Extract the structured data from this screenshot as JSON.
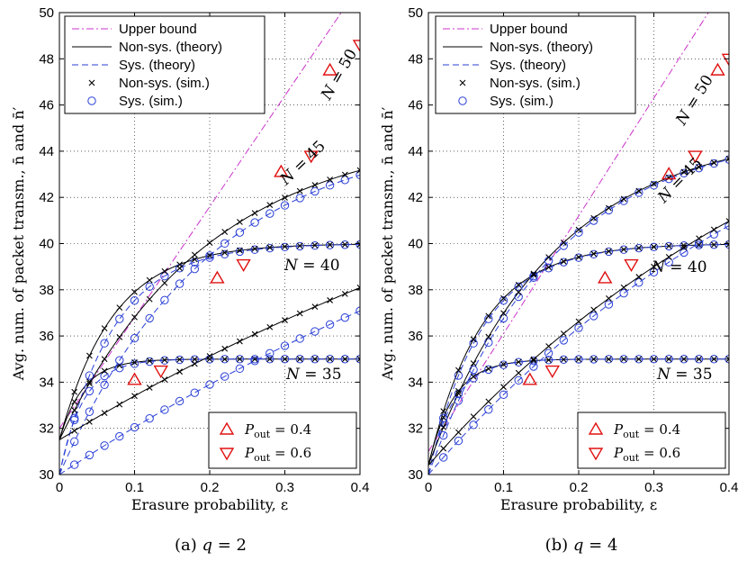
{
  "colors": {
    "upper_bound": "#cc33cc",
    "theory_nonsys": "#000000",
    "theory_sys": "#2a3fd6",
    "sim_nonsys": "#000000",
    "sim_sys": "#2a3fd6",
    "pout_markers": "#e01010",
    "grid": "#000000"
  },
  "legend_main": [
    {
      "key": "upper",
      "label": "Upper bound"
    },
    {
      "key": "nonsys_theory",
      "label": "Non-sys. (theory)"
    },
    {
      "key": "sys_theory",
      "label": "Sys. (theory)"
    },
    {
      "key": "nonsys_sim",
      "label": "Non-sys. (sim.)"
    },
    {
      "key": "sys_sim",
      "label": "Sys. (sim.)"
    }
  ],
  "legend_pout": [
    {
      "key": "pout04",
      "label": "P_out = 0.4",
      "symbol": "P",
      "subscript": "out",
      "value": "= 0.4"
    },
    {
      "key": "pout06",
      "label": "P_out = 0.6",
      "symbol": "P",
      "subscript": "out",
      "value": "= 0.6"
    }
  ],
  "chart_data": [
    {
      "type": "line",
      "caption": "(a) q = 2",
      "caption_prefix": "(a)",
      "caption_var": "q",
      "caption_value": "= 2",
      "xlabel": "Erasure probability, ε",
      "ylabel": "Avg. num. of packet transm., n̄ and n̄′",
      "xlim": [
        0,
        0.4
      ],
      "ylim": [
        30,
        50
      ],
      "xticks": [
        "0",
        "0.1",
        "0.2",
        "0.3",
        "0.4"
      ],
      "yticks": [
        "30",
        "32",
        "34",
        "36",
        "38",
        "40",
        "42",
        "44",
        "46",
        "48",
        "50"
      ],
      "grid": true,
      "upper_bound": {
        "x0": 0,
        "y0": 32.0,
        "slope": 48.0
      },
      "theory_nonsys_intercept": 31.5,
      "theory_sys_intercept": 30.0,
      "sim_x": [
        0.02,
        0.04,
        0.06,
        0.08,
        0.1,
        0.12,
        0.14,
        0.16,
        0.18,
        0.2,
        0.22,
        0.24,
        0.26,
        0.28,
        0.3,
        0.32,
        0.34,
        0.36,
        0.38,
        0.4
      ],
      "curves": [
        {
          "N": 35,
          "label": "N = 35",
          "label_N": "N",
          "label_value": "= 35",
          "sat": 35.0,
          "k": 32.0
        },
        {
          "N": 40,
          "label": "N = 40",
          "label_N": "N",
          "label_value": "= 40",
          "sat": 40.0,
          "k": 14.0
        },
        {
          "N": 45,
          "label": "N = 45",
          "label_N": "N",
          "label_value": "= 45",
          "sat": 45.0,
          "k": 5.0
        },
        {
          "N": 50,
          "label": "N = 50",
          "label_N": "N",
          "label_value": "= 50",
          "sat": 51.5,
          "k": 1.0
        }
      ],
      "pout_04": [
        {
          "x": 0.1,
          "y": 34.1
        },
        {
          "x": 0.21,
          "y": 38.5
        },
        {
          "x": 0.295,
          "y": 43.1
        },
        {
          "x": 0.36,
          "y": 47.5
        }
      ],
      "pout_06": [
        {
          "x": 0.135,
          "y": 34.5
        },
        {
          "x": 0.245,
          "y": 39.1
        },
        {
          "x": 0.335,
          "y": 43.8
        },
        {
          "x": 0.4,
          "y": 48.6
        }
      ]
    },
    {
      "type": "line",
      "caption": "(b) q = 4",
      "caption_prefix": "(b)",
      "caption_var": "q",
      "caption_value": "= 4",
      "xlabel": "Erasure probability, ε",
      "ylabel": "Avg. num. of packet transm., n̄ and n̄′",
      "xlim": [
        0,
        0.4
      ],
      "ylim": [
        30,
        50
      ],
      "xticks": [
        "0",
        "0.1",
        "0.2",
        "0.3",
        "0.4"
      ],
      "yticks": [
        "30",
        "32",
        "34",
        "36",
        "38",
        "40",
        "42",
        "44",
        "46",
        "48",
        "50"
      ],
      "grid": true,
      "upper_bound": {
        "x0": 0,
        "y0": 31.0,
        "slope": 51.0
      },
      "theory_nonsys_intercept": 30.4,
      "theory_sys_intercept": 30.0,
      "sim_x": [
        0.02,
        0.04,
        0.06,
        0.08,
        0.1,
        0.12,
        0.14,
        0.16,
        0.18,
        0.2,
        0.22,
        0.24,
        0.26,
        0.28,
        0.3,
        0.32,
        0.34,
        0.36,
        0.38,
        0.4
      ],
      "curves": [
        {
          "N": 35,
          "label": "N = 35",
          "label_N": "N",
          "label_value": "= 35",
          "sat": 35.0,
          "k": 30.0
        },
        {
          "N": 40,
          "label": "N = 40",
          "label_N": "N",
          "label_value": "= 40",
          "sat": 40.0,
          "k": 14.0
        },
        {
          "N": 45,
          "label": "N = 45",
          "label_N": "N",
          "label_value": "= 45",
          "sat": 45.0,
          "k": 6.0
        },
        {
          "N": 50,
          "label": "N = 50",
          "label_N": "N",
          "label_value": "= 50",
          "sat": 51.0,
          "k": 1.8
        }
      ],
      "pout_04": [
        {
          "x": 0.135,
          "y": 34.1
        },
        {
          "x": 0.235,
          "y": 38.5
        },
        {
          "x": 0.32,
          "y": 43.0
        },
        {
          "x": 0.385,
          "y": 47.5
        }
      ],
      "pout_06": [
        {
          "x": 0.165,
          "y": 34.5
        },
        {
          "x": 0.27,
          "y": 39.1
        },
        {
          "x": 0.355,
          "y": 43.8
        },
        {
          "x": 0.4,
          "y": 48.0
        }
      ]
    }
  ]
}
